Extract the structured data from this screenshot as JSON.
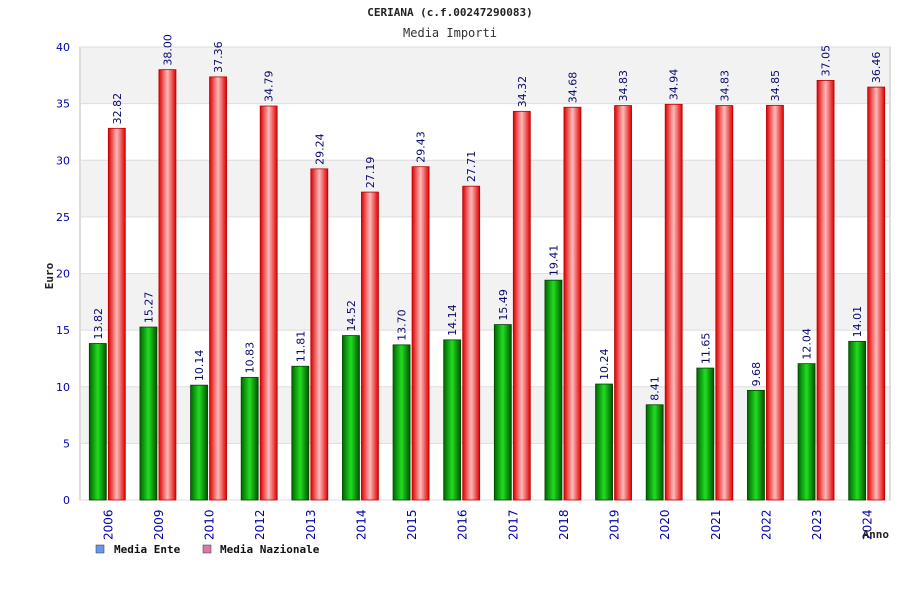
{
  "chart_data": {
    "type": "bar",
    "title": "CERIANA (c.f.00247290083)",
    "subtitle": "Media Importi",
    "xlabel": "Anno",
    "ylabel": "Euro",
    "ylim": [
      0,
      40
    ],
    "yticks": [
      "0",
      "5",
      "10",
      "15",
      "20",
      "25",
      "30",
      "35",
      "40"
    ],
    "categories": [
      "2006",
      "2009",
      "2010",
      "2012",
      "2013",
      "2014",
      "2015",
      "2016",
      "2017",
      "2018",
      "2019",
      "2020",
      "2021",
      "2022",
      "2023",
      "2024"
    ],
    "series": [
      {
        "name": "Media Ente",
        "color": "#00aa00",
        "legend_color": "#6699ee",
        "values": [
          13.82,
          15.27,
          10.14,
          10.83,
          11.81,
          14.52,
          13.7,
          14.14,
          15.49,
          19.41,
          10.24,
          8.41,
          11.65,
          9.68,
          12.04,
          14.01
        ],
        "labels": [
          "13.82",
          "15.27",
          "10.14",
          "10.83",
          "11.81",
          "14.52",
          "13.70",
          "14.14",
          "15.49",
          "19.41",
          "10.24",
          "8.41",
          "11.65",
          "9.68",
          "12.04",
          "14.01"
        ]
      },
      {
        "name": "Media Nazionale",
        "color": "#ee0000",
        "legend_color": "#dd77aa",
        "values": [
          32.82,
          38.0,
          37.36,
          34.79,
          29.24,
          27.19,
          29.43,
          27.71,
          34.32,
          34.68,
          34.83,
          34.94,
          34.83,
          34.85,
          37.05,
          36.46
        ],
        "labels": [
          "32.82",
          "38.00",
          "37.36",
          "34.79",
          "29.24",
          "27.19",
          "29.43",
          "27.71",
          "34.32",
          "34.68",
          "34.83",
          "34.94",
          "34.83",
          "34.85",
          "37.05",
          "36.46"
        ]
      }
    ],
    "legend_position": "bottom-left"
  }
}
